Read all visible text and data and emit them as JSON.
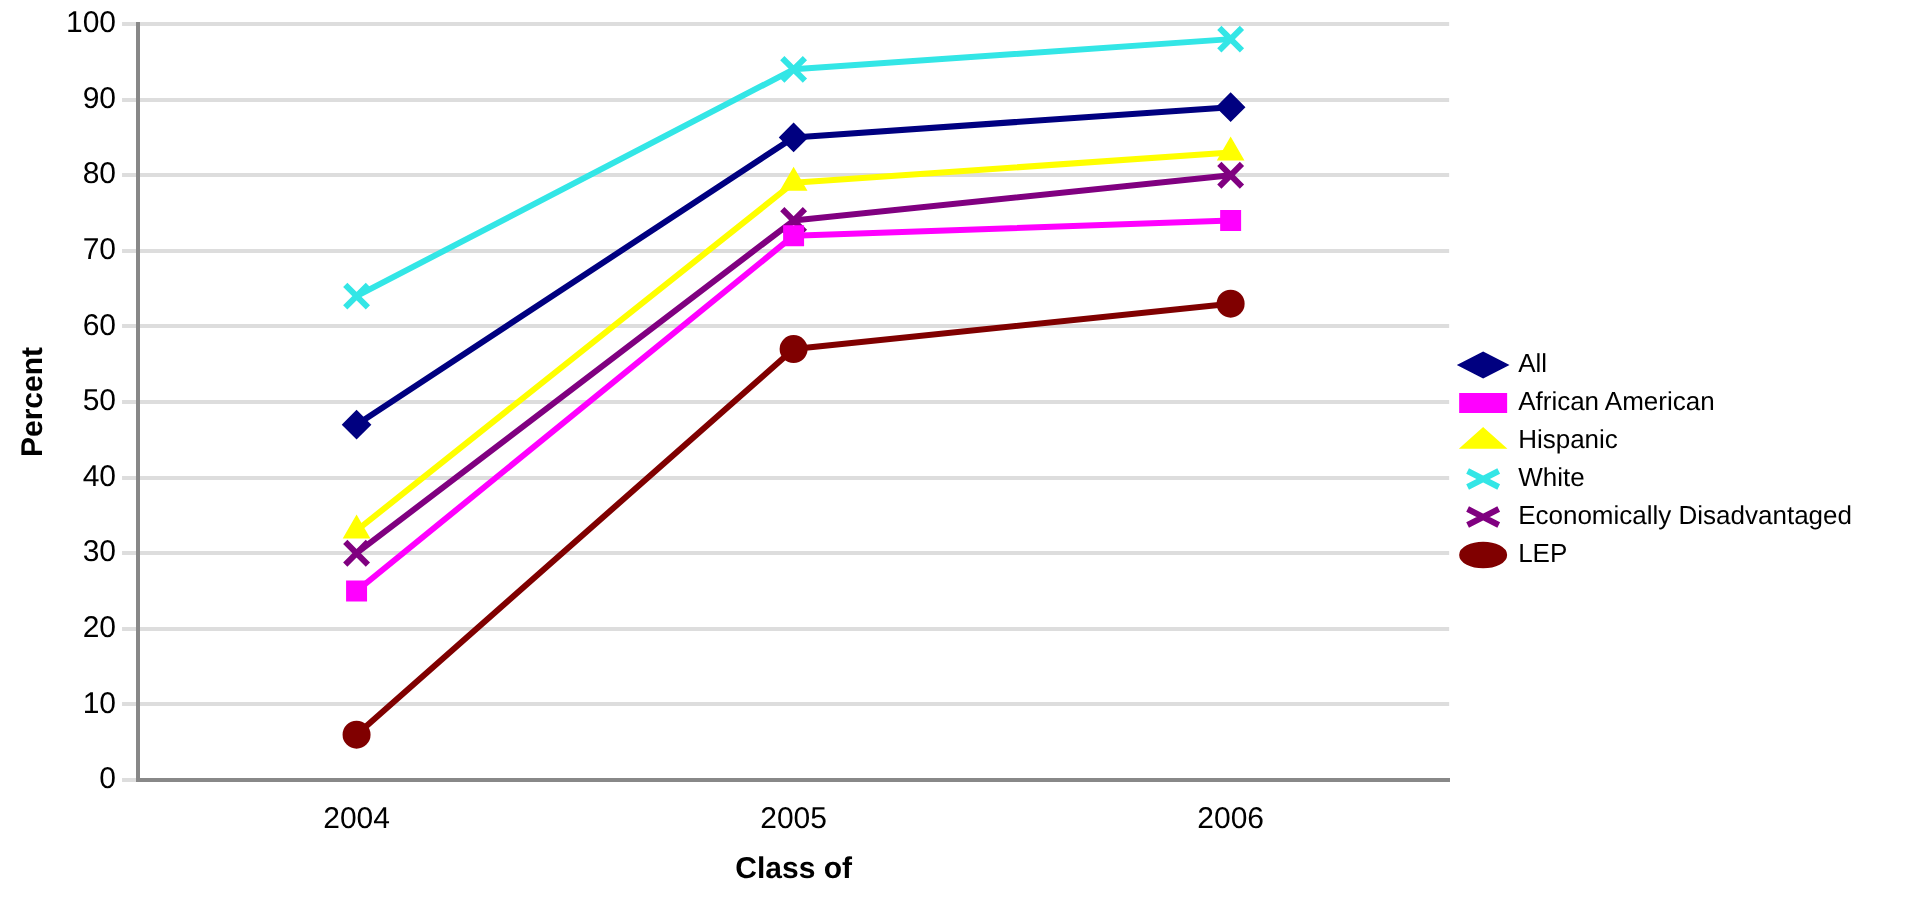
{
  "chart_data": {
    "type": "line",
    "xlabel": "Class of",
    "ylabel": "Percent",
    "categories": [
      "2004",
      "2005",
      "2006"
    ],
    "ylim": [
      0,
      100
    ],
    "yticks": [
      0,
      10,
      20,
      30,
      40,
      50,
      60,
      70,
      80,
      90,
      100
    ],
    "grid": "y",
    "legend": "right",
    "series": [
      {
        "name": "All",
        "color": "#000080",
        "marker": "diamond",
        "values": [
          47,
          85,
          89
        ]
      },
      {
        "name": "African American",
        "color": "#ff00ff",
        "marker": "square",
        "values": [
          25,
          72,
          74
        ]
      },
      {
        "name": "Hispanic",
        "color": "#ffff00",
        "marker": "triangle",
        "values": [
          33,
          79,
          83
        ]
      },
      {
        "name": "White",
        "color": "#33e6e6",
        "marker": "cross",
        "values": [
          64,
          94,
          98
        ]
      },
      {
        "name": "Economically Disadvantaged",
        "color": "#800080",
        "marker": "cross",
        "values": [
          30,
          74,
          80
        ]
      },
      {
        "name": "LEP",
        "color": "#800000",
        "marker": "circle",
        "values": [
          6,
          57,
          63
        ]
      }
    ]
  }
}
